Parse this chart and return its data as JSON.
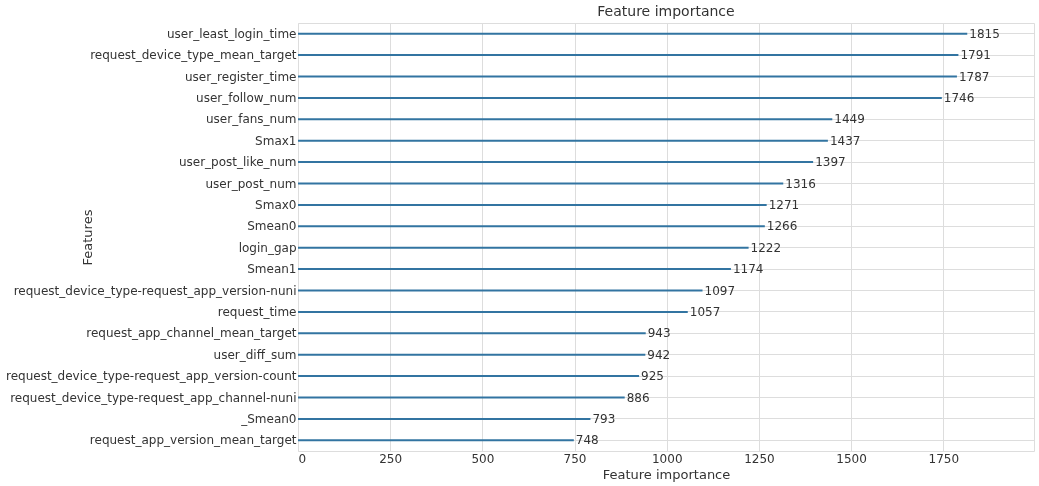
{
  "chart_data": {
    "type": "bar",
    "orientation": "horizontal",
    "title": "Feature importance",
    "xlabel": "Feature importance",
    "ylabel": "Features",
    "categories": [
      "user_least_login_time",
      "request_device_type_mean_target",
      "user_register_time",
      "user_follow_num",
      "user_fans_num",
      "Smax1",
      "user_post_like_num",
      "user_post_num",
      "Smax0",
      "Smean0",
      "login_gap",
      "Smean1",
      "request_device_type-request_app_version-nuni",
      "request_time",
      "request_app_channel_mean_target",
      "user_diff_sum",
      "request_device_type-request_app_version-count",
      "request_device_type-request_app_channel-nuni",
      "_Smean0",
      "request_app_version_mean_target"
    ],
    "values": [
      1815,
      1791,
      1787,
      1746,
      1449,
      1437,
      1397,
      1316,
      1271,
      1266,
      1222,
      1174,
      1097,
      1057,
      943,
      942,
      925,
      886,
      793,
      748
    ],
    "color": "#3274a1",
    "data_labels": true,
    "grid": true,
    "xlim": [
      0,
      1996
    ],
    "xticks": [
      0,
      250,
      500,
      750,
      1000,
      1250,
      1500,
      1750
    ]
  }
}
